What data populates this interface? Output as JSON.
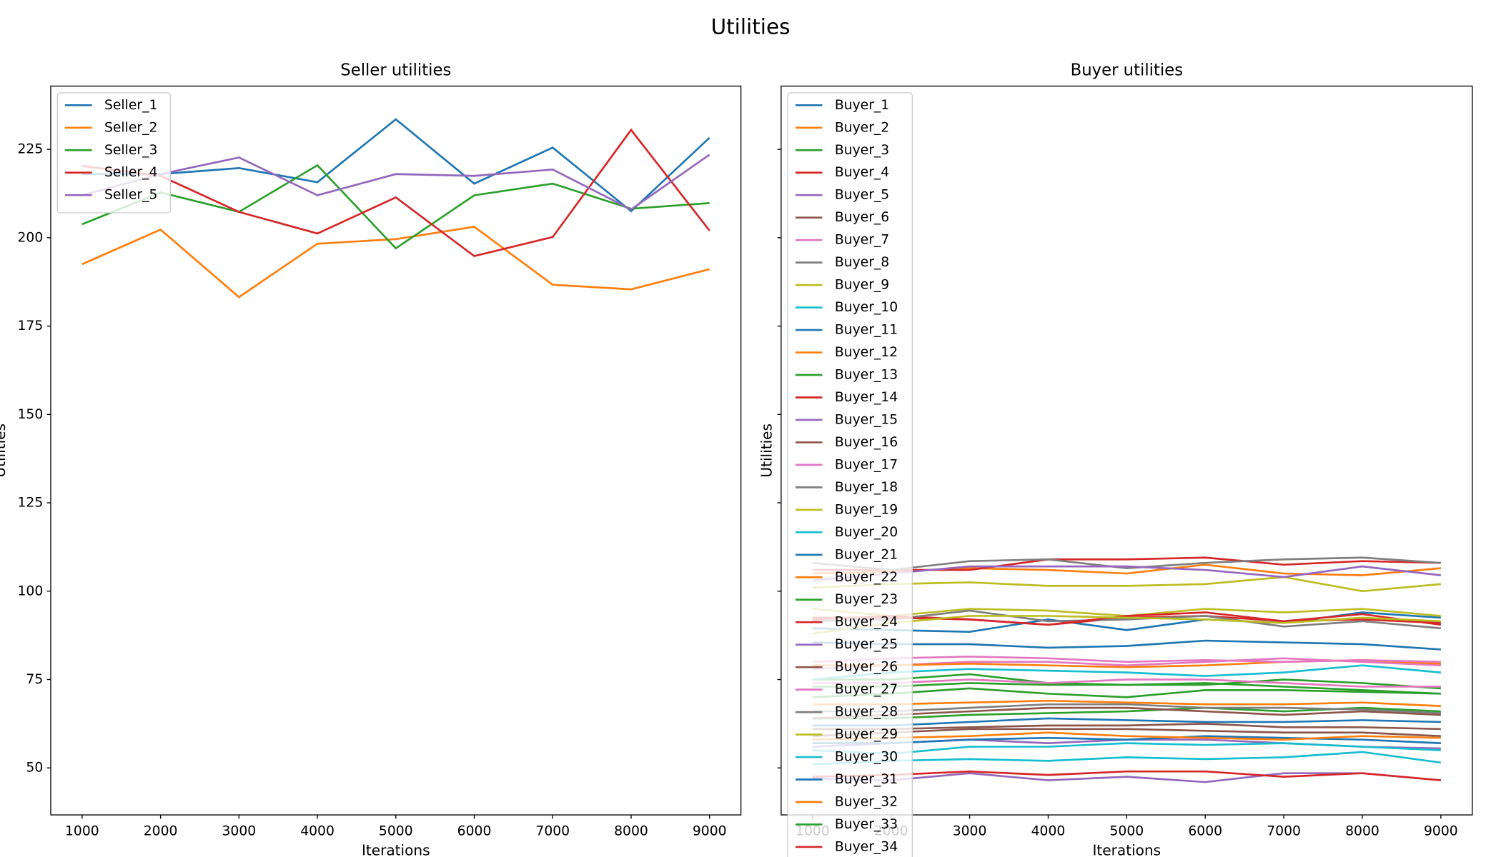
{
  "title": "Utilities",
  "chart_data": [
    {
      "type": "line",
      "title": "Seller utilities",
      "xlabel": "Iterations",
      "ylabel": "Utilities",
      "legend": "upper left",
      "show_ytick_labels": true,
      "x": [
        1000,
        2000,
        3000,
        4000,
        5000,
        6000,
        7000,
        8000,
        9000
      ],
      "xlim": [
        600,
        9400
      ],
      "xticks": [
        1000,
        2000,
        3000,
        4000,
        5000,
        6000,
        7000,
        8000,
        9000
      ],
      "ylim": [
        36.7,
        242.9
      ],
      "yticks": [
        50,
        75,
        100,
        125,
        150,
        175,
        200,
        225
      ],
      "series": [
        {
          "name": "Seller_1",
          "color": "#1f77b4",
          "values": [
            218,
            218,
            219.7,
            215.7,
            233.5,
            215.3,
            225.5,
            207.5,
            228.3
          ]
        },
        {
          "name": "Seller_2",
          "color": "#ff7f0e",
          "values": [
            192.5,
            202.3,
            183.2,
            198.3,
            199.6,
            203.1,
            186.7,
            185.4,
            191.1
          ]
        },
        {
          "name": "Seller_3",
          "color": "#2ca02c",
          "values": [
            203.8,
            212.8,
            207.3,
            220.5,
            197,
            212,
            215.3,
            208.2,
            209.8
          ]
        },
        {
          "name": "Seller_4",
          "color": "#d62728",
          "values": [
            220.3,
            217.5,
            207.3,
            201.2,
            211.4,
            194.8,
            200.2,
            230.5,
            202
          ]
        },
        {
          "name": "Seller_5",
          "color": "#9467bd",
          "values": [
            212,
            218,
            222.7,
            212,
            218,
            217.5,
            219.3,
            208,
            223.5
          ]
        }
      ]
    },
    {
      "type": "line",
      "title": "Buyer utilities",
      "xlabel": "Iterations",
      "ylabel": "Utilities",
      "legend": "upper left",
      "show_ytick_labels": false,
      "x": [
        1000,
        2000,
        3000,
        4000,
        5000,
        6000,
        7000,
        8000,
        9000
      ],
      "xlim": [
        600,
        9400
      ],
      "xticks": [
        1000,
        2000,
        3000,
        4000,
        5000,
        6000,
        7000,
        8000,
        9000
      ],
      "ylim": [
        36.7,
        242.9
      ],
      "yticks": [
        50,
        75,
        100,
        125,
        150,
        175,
        200,
        225
      ],
      "series": [
        {
          "name": "Buyer_1",
          "color": "#1f77b4",
          "values": [
            89.5,
            89,
            88.5,
            92,
            89,
            92,
            91,
            94,
            92.5
          ]
        },
        {
          "name": "Buyer_2",
          "color": "#ff7f0e",
          "values": [
            105,
            105.5,
            106.5,
            106,
            105,
            107.5,
            105,
            104.5,
            106.5
          ]
        },
        {
          "name": "Buyer_3",
          "color": "#2ca02c",
          "values": [
            64,
            64,
            65,
            65.5,
            66,
            67,
            66,
            67,
            66
          ]
        },
        {
          "name": "Buyer_4",
          "color": "#d62728",
          "values": [
            106,
            106,
            106,
            109,
            109,
            109.5,
            107.5,
            108.5,
            108
          ]
        },
        {
          "name": "Buyer_5",
          "color": "#9467bd",
          "values": [
            47,
            46.5,
            48.5,
            46.5,
            47.5,
            46,
            48.5,
            48.5,
            46.5
          ]
        },
        {
          "name": "Buyer_6",
          "color": "#8c564b",
          "values": [
            61,
            61,
            61.5,
            62,
            62,
            62.5,
            61.5,
            61.5,
            61
          ]
        },
        {
          "name": "Buyer_7",
          "color": "#e377c2",
          "values": [
            78,
            79,
            80,
            80,
            79,
            80,
            81,
            80,
            79
          ]
        },
        {
          "name": "Buyer_8",
          "color": "#7f7f7f",
          "values": [
            108,
            106,
            108.5,
            109,
            106.5,
            108,
            109,
            109.5,
            108
          ]
        },
        {
          "name": "Buyer_9",
          "color": "#bcbd22",
          "values": [
            95,
            93,
            95,
            94.5,
            93,
            95,
            94,
            95,
            93
          ]
        },
        {
          "name": "Buyer_10",
          "color": "#17becf",
          "values": [
            51,
            52,
            52.5,
            52,
            53,
            52.5,
            53,
            54.5,
            51.5
          ]
        },
        {
          "name": "Buyer_11",
          "color": "#1f77b4",
          "values": [
            85.5,
            85,
            85,
            84,
            84.5,
            86,
            85.5,
            85,
            83.5
          ]
        },
        {
          "name": "Buyer_12",
          "color": "#ff7f0e",
          "values": [
            68,
            68,
            68.5,
            69,
            68.5,
            68,
            68,
            68.5,
            67.5
          ]
        },
        {
          "name": "Buyer_13",
          "color": "#2ca02c",
          "values": [
            75,
            75,
            76.5,
            74,
            73.5,
            73.5,
            75,
            74,
            72.5
          ]
        },
        {
          "name": "Buyer_14",
          "color": "#d62728",
          "values": [
            92,
            93,
            92,
            90.5,
            92.5,
            93,
            91.5,
            92,
            91
          ]
        },
        {
          "name": "Buyer_15",
          "color": "#9467bd",
          "values": [
            56,
            57,
            58,
            57,
            58,
            58,
            57,
            56,
            55.5
          ]
        },
        {
          "name": "Buyer_16",
          "color": "#8c564b",
          "values": [
            64,
            65,
            66,
            67,
            67,
            66,
            65,
            66,
            65
          ]
        },
        {
          "name": "Buyer_17",
          "color": "#e377c2",
          "values": [
            74,
            74,
            75,
            74,
            75,
            75,
            74,
            73,
            73
          ]
        },
        {
          "name": "Buyer_18",
          "color": "#7f7f7f",
          "values": [
            91.5,
            92,
            94.5,
            91.5,
            92,
            93,
            90,
            91.5,
            89.5
          ]
        },
        {
          "name": "Buyer_19",
          "color": "#bcbd22",
          "values": [
            101,
            102,
            102.5,
            101.5,
            101.5,
            102,
            104,
            100,
            102
          ]
        },
        {
          "name": "Buyer_20",
          "color": "#17becf",
          "values": [
            75,
            77,
            78,
            77.5,
            77,
            76,
            77,
            79,
            77
          ]
        },
        {
          "name": "Buyer_21",
          "color": "#1f77b4",
          "values": [
            57,
            57,
            58,
            58.5,
            58,
            59,
            58.5,
            58,
            57
          ]
        },
        {
          "name": "Buyer_22",
          "color": "#ff7f0e",
          "values": [
            79,
            79,
            79.5,
            79,
            78.5,
            79,
            80,
            80.5,
            79.5
          ]
        },
        {
          "name": "Buyer_23",
          "color": "#2ca02c",
          "values": [
            70,
            71,
            72.5,
            71,
            70,
            72,
            72,
            71.5,
            71
          ]
        },
        {
          "name": "Buyer_24",
          "color": "#d62728",
          "values": [
            92.5,
            92.5,
            92,
            90.5,
            93,
            94,
            91.5,
            93.5,
            90.5
          ]
        },
        {
          "name": "Buyer_25",
          "color": "#9467bd",
          "values": [
            103,
            105,
            107,
            107,
            107,
            106,
            104,
            107,
            104.5
          ]
        },
        {
          "name": "Buyer_26",
          "color": "#8c564b",
          "values": [
            59,
            60,
            61,
            61,
            61,
            60.5,
            60,
            60,
            59
          ]
        },
        {
          "name": "Buyer_27",
          "color": "#e377c2",
          "values": [
            80,
            81,
            81.5,
            81,
            80,
            80.5,
            80,
            80.5,
            80
          ]
        },
        {
          "name": "Buyer_28",
          "color": "#7f7f7f",
          "values": [
            66,
            66,
            67,
            68,
            68,
            67,
            67,
            66.5,
            65.5
          ]
        },
        {
          "name": "Buyer_29",
          "color": "#bcbd22",
          "values": [
            88,
            91,
            93,
            93,
            92.5,
            92,
            91,
            92.5,
            91.5
          ]
        },
        {
          "name": "Buyer_30",
          "color": "#17becf",
          "values": [
            55,
            54,
            56,
            56,
            57,
            56.5,
            57,
            56,
            55
          ]
        },
        {
          "name": "Buyer_31",
          "color": "#1f77b4",
          "values": [
            62,
            62,
            63,
            64,
            63.5,
            63,
            63,
            63.5,
            63
          ]
        },
        {
          "name": "Buyer_32",
          "color": "#ff7f0e",
          "values": [
            58,
            58.5,
            59,
            60,
            59,
            58.5,
            58,
            59,
            58.5
          ]
        },
        {
          "name": "Buyer_33",
          "color": "#2ca02c",
          "values": [
            73,
            73,
            74,
            73.5,
            73.5,
            74,
            73,
            72,
            71
          ]
        },
        {
          "name": "Buyer_34",
          "color": "#d62728",
          "values": [
            47.5,
            48,
            49,
            48,
            49,
            49,
            47.5,
            48.5,
            46.5
          ]
        }
      ]
    }
  ]
}
